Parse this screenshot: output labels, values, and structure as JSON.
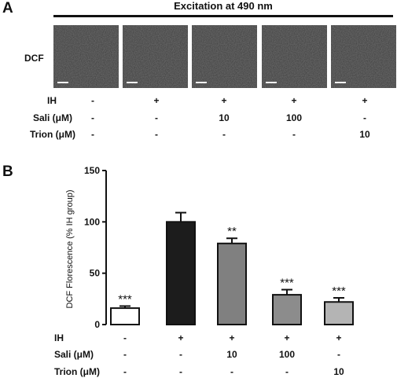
{
  "panel_a": {
    "letter": "A",
    "header": "Excitation at 490 nm",
    "row_label": "DCF"
  },
  "panel_b": {
    "letter": "B"
  },
  "conditions": {
    "rows": [
      {
        "label": "IH",
        "values": [
          "-",
          "+",
          "+",
          "+",
          "+"
        ]
      },
      {
        "label": "Sali (μM)",
        "values": [
          "-",
          "-",
          "10",
          "100",
          "-"
        ]
      },
      {
        "label": "Trion (μM)",
        "values": [
          "-",
          "-",
          "-",
          "-",
          "10"
        ]
      }
    ]
  },
  "chart_data": {
    "type": "bar",
    "ylabel": "DCF Florescence (% IH group)",
    "ylim": [
      0,
      150
    ],
    "yticks": [
      0,
      50,
      100,
      150
    ],
    "values": [
      16,
      100,
      79,
      29,
      22
    ],
    "errors": [
      2,
      9,
      5,
      5,
      4
    ],
    "significance": [
      "***",
      "",
      "**",
      "***",
      "***"
    ],
    "bar_colors": [
      "#ffffff",
      "#1c1c1c",
      "#808080",
      "#8c8c8c",
      "#b4b4b4"
    ]
  }
}
